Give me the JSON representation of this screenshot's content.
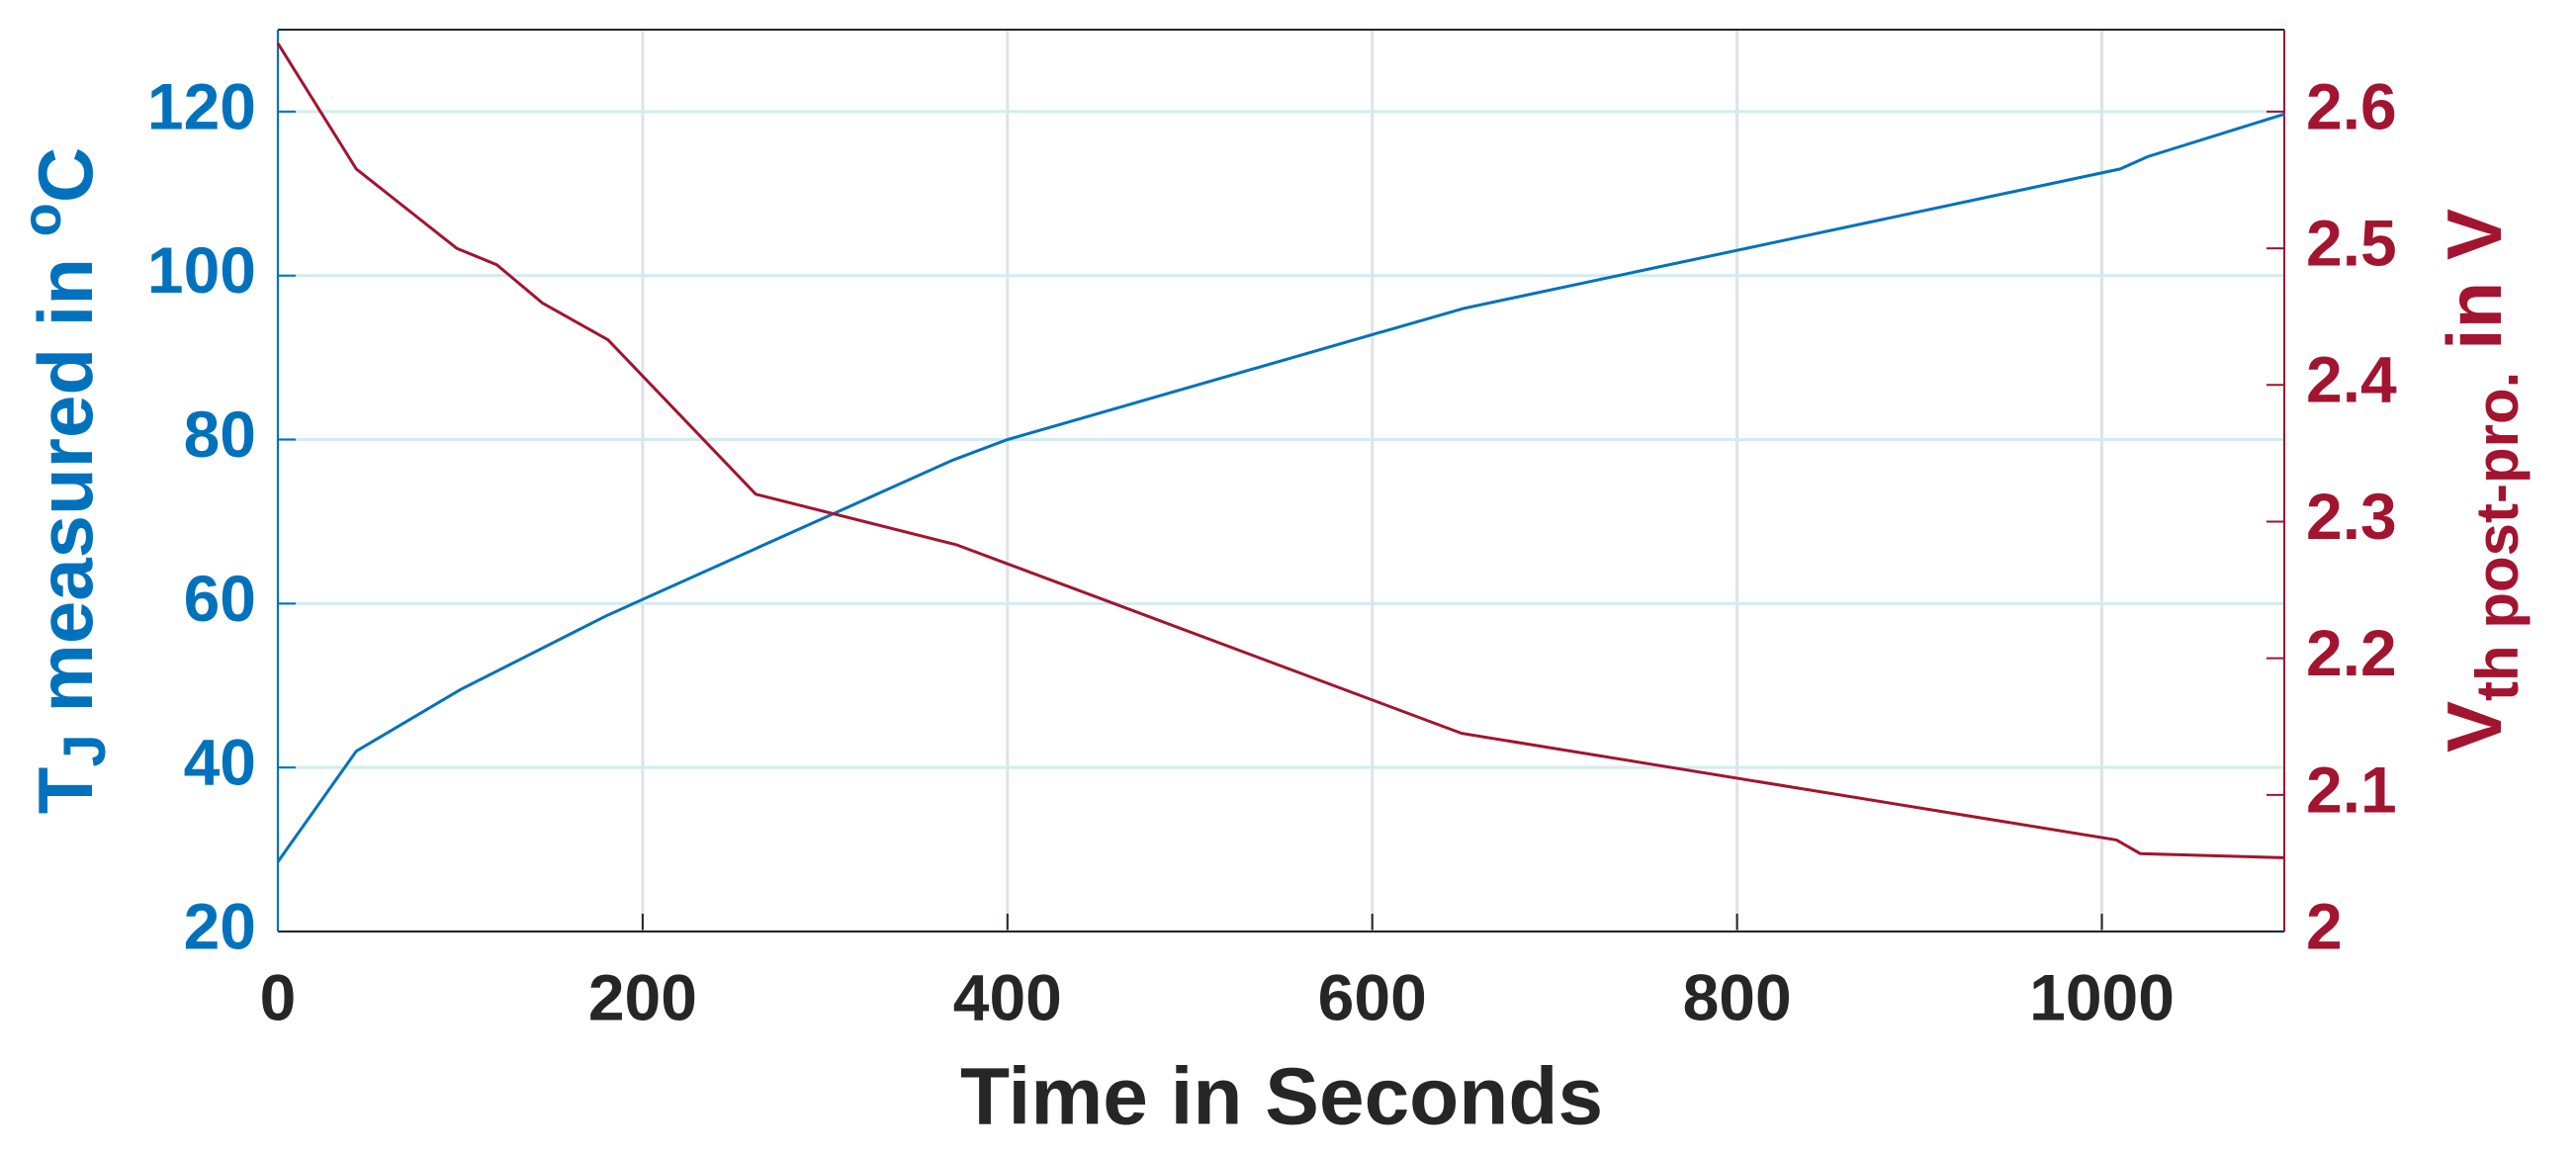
{
  "chart_data": {
    "type": "line",
    "xlabel": "Time in Seconds",
    "ylabel": [
      "T",
      "J",
      " measured in ",
      "o",
      "C"
    ],
    "y2label": [
      "V",
      "th post-pro.",
      " in V"
    ],
    "xlim": [
      0,
      1100
    ],
    "xticks": [
      0,
      200,
      400,
      600,
      800,
      1000
    ],
    "ylim": [
      20,
      130
    ],
    "yticks": [
      20,
      40,
      60,
      80,
      100,
      120
    ],
    "y2lim": [
      2,
      2.66
    ],
    "y2ticks": [
      2,
      2.1,
      2.2,
      2.3,
      2.4,
      2.5,
      2.6
    ],
    "grid": true,
    "series": [
      {
        "name": "T_J",
        "color": "#0072bd",
        "x": [
          0,
          43,
          100,
          180,
          265,
          370,
          400,
          650,
          1010,
          1025,
          1100
        ],
        "values": [
          28.5,
          42,
          49.5,
          58.5,
          67,
          77.5,
          80,
          96,
          113,
          114.5,
          119.7
        ]
      },
      {
        "name": "V_th",
        "color": "#a2142f",
        "axis": "y2",
        "x": [
          0,
          43,
          98,
          120,
          145,
          181,
          262,
          372,
          649,
          1008,
          1021,
          1100
        ],
        "values": [
          2.65,
          2.558,
          2.5,
          2.488,
          2.46,
          2.433,
          2.32,
          2.283,
          2.145,
          2.067,
          2.057,
          2.054
        ]
      }
    ]
  }
}
